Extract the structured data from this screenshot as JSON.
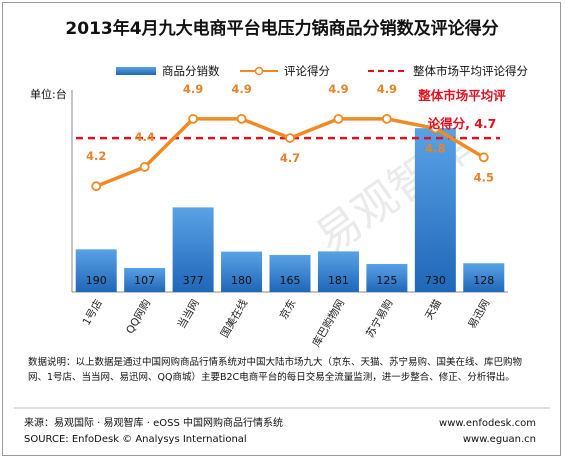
{
  "title": "2013年4月九大电商平台电压力锅商品分销数及评论得分",
  "unit_label": "单位:台",
  "legend": {
    "bars": "商品分销数",
    "line": "评论得分",
    "avg": "整体市场平均评论得分"
  },
  "avg_annotation": "整体市场平均评论得分, 4.7",
  "watermark": "易观智库",
  "note": "数据说明：以上数据是通过中国网购商品行情系统对中国大陆市场九大（京东、天猫、苏宁易购、国美在线、库巴购物网、1号店、当当网、易迅网、QQ商城）主要B2C电商平台的每日交易全流量监测，进一步整合、修正、分析得出。",
  "footer": {
    "source_cn": "来源：易观国际 · 易观智库 · eOSS 中国网购商品行情系统",
    "source_en": "SOURCE: EnfoDesk © Analysys International",
    "url1": "www.enfodesk.com",
    "url2": "www.eguan.cn"
  },
  "colors": {
    "bar": "#2f7fd0",
    "line": "#f08a24",
    "avg": "#e3101e"
  },
  "chart_data": {
    "type": "bar",
    "title": "2013年4月九大电商平台电压力锅商品分销数及评论得分",
    "categories": [
      "1号店",
      "QQ网购",
      "当当网",
      "国美在线",
      "京东",
      "库巴购物网",
      "苏宁易购",
      "天猫",
      "易迅网"
    ],
    "series": [
      {
        "name": "商品分销数",
        "type": "bar",
        "axis": "left",
        "values": [
          190,
          107,
          377,
          180,
          165,
          181,
          125,
          730,
          128
        ]
      },
      {
        "name": "评论得分",
        "type": "line",
        "axis": "right",
        "values": [
          4.2,
          4.4,
          4.9,
          4.9,
          4.7,
          4.9,
          4.9,
          4.8,
          4.5
        ]
      }
    ],
    "reference_line": {
      "name": "整体市场平均评论得分",
      "value": 4.7,
      "axis": "right"
    },
    "ylabel": "单位:台",
    "ylim_left": [
      0,
      900
    ],
    "ylim_right": [
      3.1,
      5.2
    ],
    "legend_position": "top",
    "grid": false
  }
}
